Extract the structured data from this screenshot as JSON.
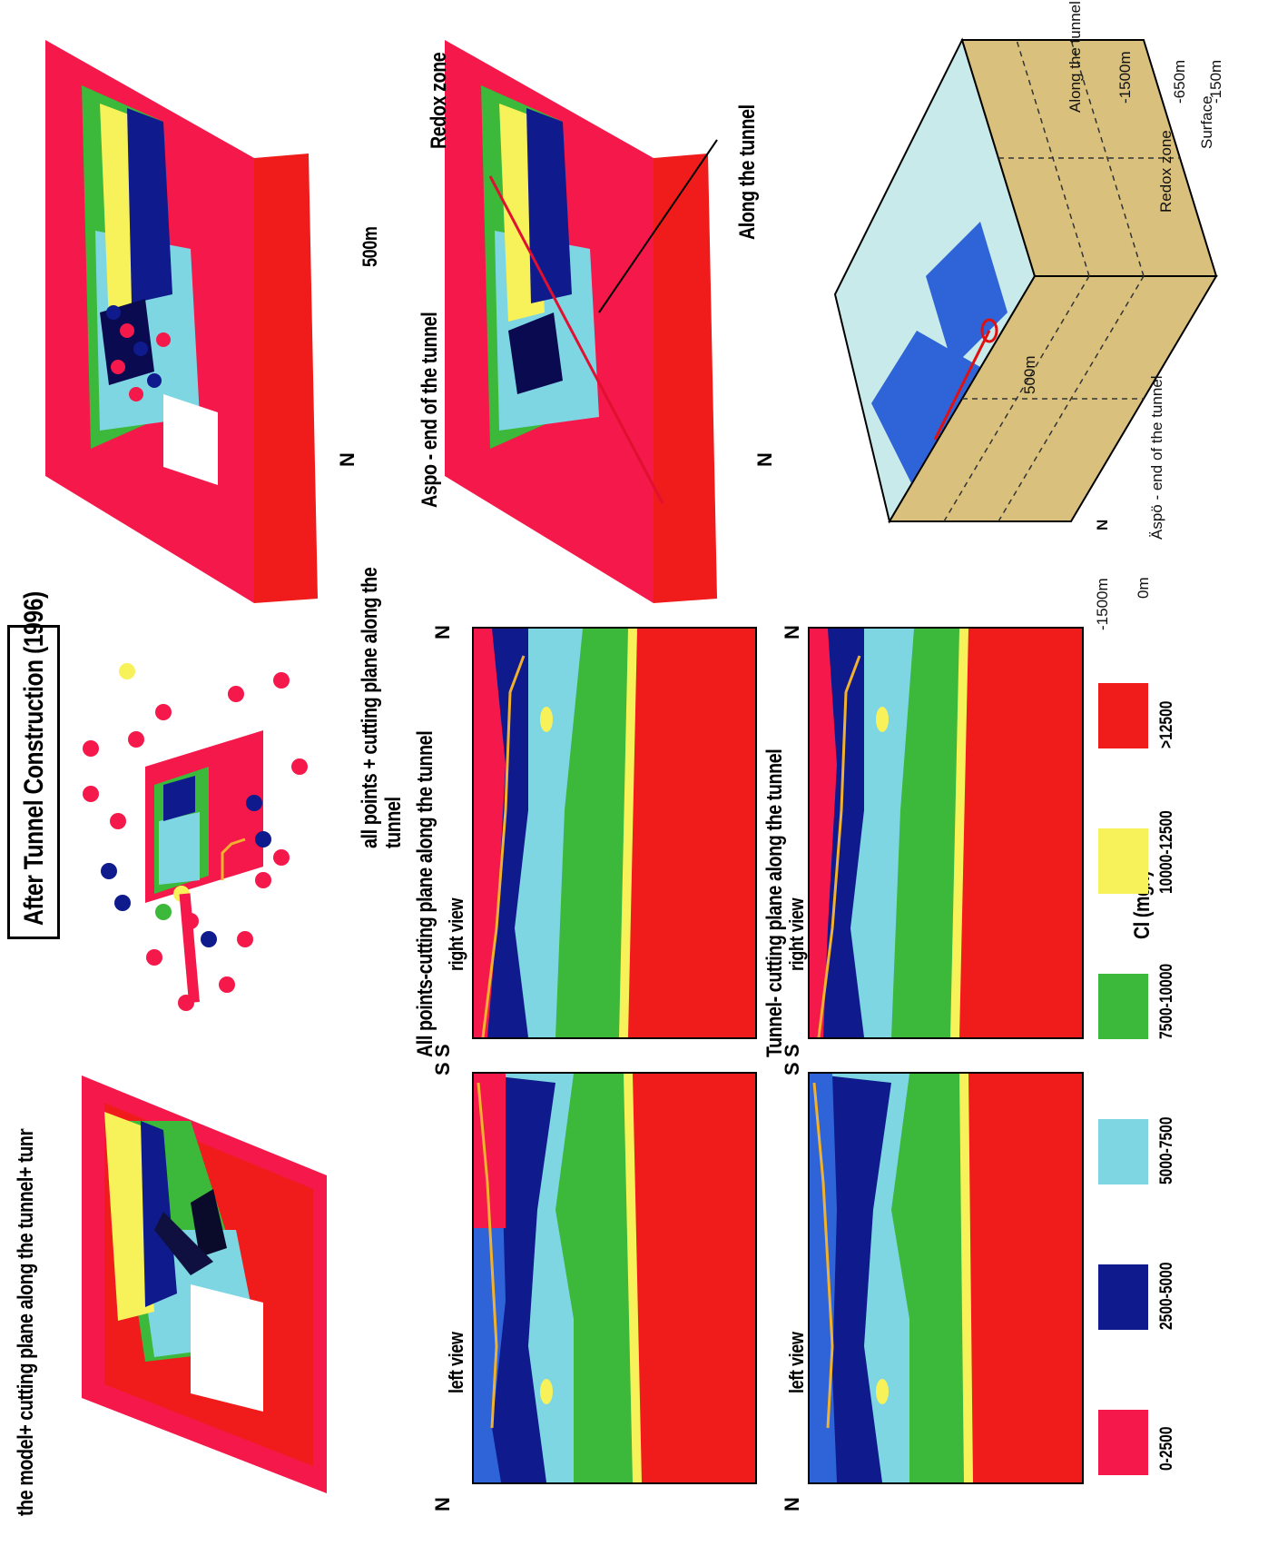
{
  "title": "After Tunnel Construction (1996)",
  "panels": {
    "model_3d_caption": "the model+ cutting plane along the tunnel+ tunnel",
    "points_3d_caption": "all points + cutting plane along the tunnel",
    "section_allpoints_caption": "All points-cutting plane along the tunnel",
    "section_tunnel_caption": "Tunnel- cutting plane along the tunnel",
    "left_view": "left view",
    "right_view": "right view",
    "north": "N",
    "south": "S",
    "scale_bar": "500m",
    "aspo_label": "Aspo - end of the tunnel",
    "redox_label": "Redox zone",
    "along_label": "Along the tunnel"
  },
  "block_diagram": {
    "aspo_label": "Äspö - end of the tunnel",
    "redox_label": "Redox zone",
    "surface": "Surface",
    "d150": "-150m",
    "d650": "-650m",
    "d1500_right": "-1500m",
    "along": "Along the tunnel",
    "zero": "0m",
    "d1500_left": "-1500m",
    "scale": "500m",
    "north": "N"
  },
  "legend": {
    "title": "Cl (mg/l)",
    "items": [
      {
        "label": "0-2500",
        "color": "#f5184a"
      },
      {
        "label": "2500-5000",
        "color": "#0f1a8c"
      },
      {
        "label": "5000-7500",
        "color": "#7fd6e3"
      },
      {
        "label": "7500-10000",
        "color": "#3cb83a"
      },
      {
        "label": "10000-12500",
        "color": "#f7f25a"
      },
      {
        "label": ">12500",
        "color": "#f01c1c"
      }
    ]
  },
  "colors": {
    "pink": "#f5184a",
    "navy": "#0f1a8c",
    "lightblue": "#7fd6e3",
    "green": "#3cb83a",
    "yellow": "#f7f25a",
    "red": "#f01c1c",
    "blue": "#2f64d8",
    "paleblue": "#c8eaea",
    "tan": "#d9c07c",
    "tunnel": "#f0b22e"
  }
}
